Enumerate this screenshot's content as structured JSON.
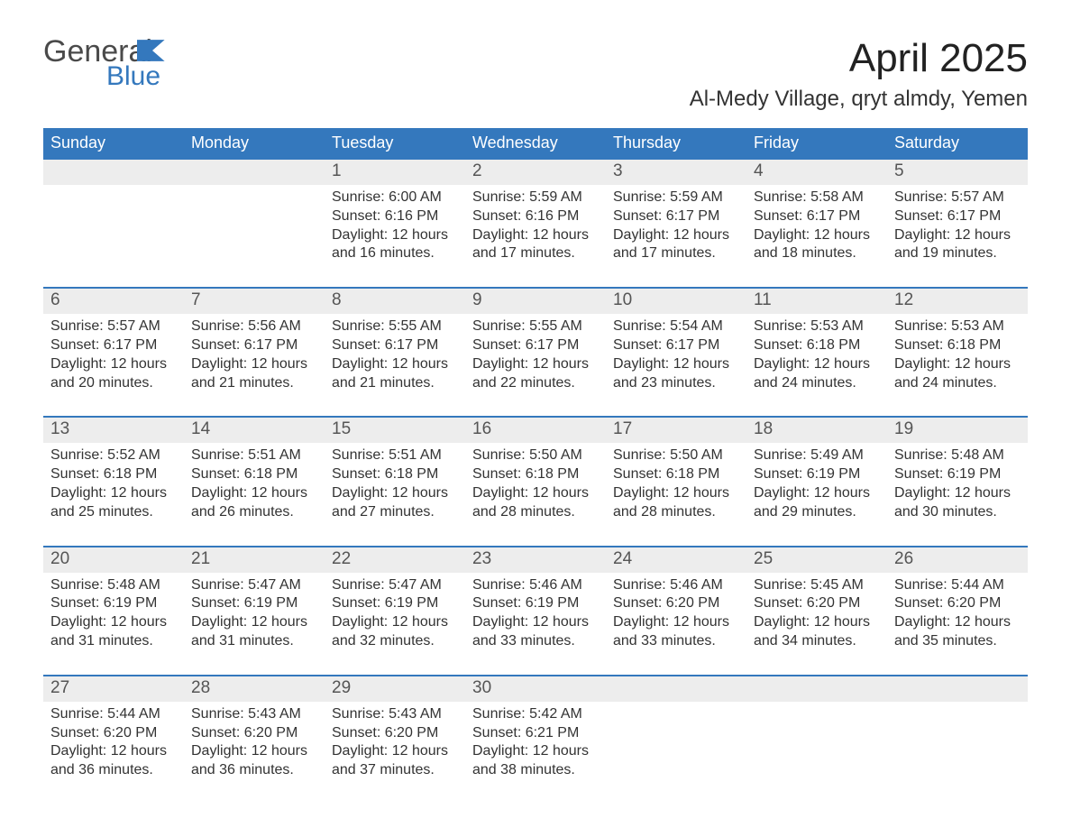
{
  "brand": {
    "word1": "General",
    "word2": "Blue",
    "flag_color": "#3478bd",
    "text_gray": "#4a4a4a"
  },
  "header": {
    "month_title": "April 2025",
    "location": "Al-Medy Village, qryt almdy, Yemen"
  },
  "styling": {
    "header_bg": "#3478bd",
    "header_text": "#ffffff",
    "daynum_bg": "#ededed",
    "week_divider": "#3478bd",
    "body_text": "#333333",
    "page_bg": "#ffffff",
    "title_fontsize": 44,
    "location_fontsize": 24,
    "weekday_fontsize": 18,
    "daynum_fontsize": 19,
    "detail_fontsize": 16
  },
  "weekdays": [
    "Sunday",
    "Monday",
    "Tuesday",
    "Wednesday",
    "Thursday",
    "Friday",
    "Saturday"
  ],
  "weeks": [
    {
      "days": [
        {
          "num": "",
          "sunrise": "",
          "sunset": "",
          "daylight1": "",
          "daylight2": ""
        },
        {
          "num": "",
          "sunrise": "",
          "sunset": "",
          "daylight1": "",
          "daylight2": ""
        },
        {
          "num": "1",
          "sunrise": "Sunrise: 6:00 AM",
          "sunset": "Sunset: 6:16 PM",
          "daylight1": "Daylight: 12 hours",
          "daylight2": "and 16 minutes."
        },
        {
          "num": "2",
          "sunrise": "Sunrise: 5:59 AM",
          "sunset": "Sunset: 6:16 PM",
          "daylight1": "Daylight: 12 hours",
          "daylight2": "and 17 minutes."
        },
        {
          "num": "3",
          "sunrise": "Sunrise: 5:59 AM",
          "sunset": "Sunset: 6:17 PM",
          "daylight1": "Daylight: 12 hours",
          "daylight2": "and 17 minutes."
        },
        {
          "num": "4",
          "sunrise": "Sunrise: 5:58 AM",
          "sunset": "Sunset: 6:17 PM",
          "daylight1": "Daylight: 12 hours",
          "daylight2": "and 18 minutes."
        },
        {
          "num": "5",
          "sunrise": "Sunrise: 5:57 AM",
          "sunset": "Sunset: 6:17 PM",
          "daylight1": "Daylight: 12 hours",
          "daylight2": "and 19 minutes."
        }
      ]
    },
    {
      "days": [
        {
          "num": "6",
          "sunrise": "Sunrise: 5:57 AM",
          "sunset": "Sunset: 6:17 PM",
          "daylight1": "Daylight: 12 hours",
          "daylight2": "and 20 minutes."
        },
        {
          "num": "7",
          "sunrise": "Sunrise: 5:56 AM",
          "sunset": "Sunset: 6:17 PM",
          "daylight1": "Daylight: 12 hours",
          "daylight2": "and 21 minutes."
        },
        {
          "num": "8",
          "sunrise": "Sunrise: 5:55 AM",
          "sunset": "Sunset: 6:17 PM",
          "daylight1": "Daylight: 12 hours",
          "daylight2": "and 21 minutes."
        },
        {
          "num": "9",
          "sunrise": "Sunrise: 5:55 AM",
          "sunset": "Sunset: 6:17 PM",
          "daylight1": "Daylight: 12 hours",
          "daylight2": "and 22 minutes."
        },
        {
          "num": "10",
          "sunrise": "Sunrise: 5:54 AM",
          "sunset": "Sunset: 6:17 PM",
          "daylight1": "Daylight: 12 hours",
          "daylight2": "and 23 minutes."
        },
        {
          "num": "11",
          "sunrise": "Sunrise: 5:53 AM",
          "sunset": "Sunset: 6:18 PM",
          "daylight1": "Daylight: 12 hours",
          "daylight2": "and 24 minutes."
        },
        {
          "num": "12",
          "sunrise": "Sunrise: 5:53 AM",
          "sunset": "Sunset: 6:18 PM",
          "daylight1": "Daylight: 12 hours",
          "daylight2": "and 24 minutes."
        }
      ]
    },
    {
      "days": [
        {
          "num": "13",
          "sunrise": "Sunrise: 5:52 AM",
          "sunset": "Sunset: 6:18 PM",
          "daylight1": "Daylight: 12 hours",
          "daylight2": "and 25 minutes."
        },
        {
          "num": "14",
          "sunrise": "Sunrise: 5:51 AM",
          "sunset": "Sunset: 6:18 PM",
          "daylight1": "Daylight: 12 hours",
          "daylight2": "and 26 minutes."
        },
        {
          "num": "15",
          "sunrise": "Sunrise: 5:51 AM",
          "sunset": "Sunset: 6:18 PM",
          "daylight1": "Daylight: 12 hours",
          "daylight2": "and 27 minutes."
        },
        {
          "num": "16",
          "sunrise": "Sunrise: 5:50 AM",
          "sunset": "Sunset: 6:18 PM",
          "daylight1": "Daylight: 12 hours",
          "daylight2": "and 28 minutes."
        },
        {
          "num": "17",
          "sunrise": "Sunrise: 5:50 AM",
          "sunset": "Sunset: 6:18 PM",
          "daylight1": "Daylight: 12 hours",
          "daylight2": "and 28 minutes."
        },
        {
          "num": "18",
          "sunrise": "Sunrise: 5:49 AM",
          "sunset": "Sunset: 6:19 PM",
          "daylight1": "Daylight: 12 hours",
          "daylight2": "and 29 minutes."
        },
        {
          "num": "19",
          "sunrise": "Sunrise: 5:48 AM",
          "sunset": "Sunset: 6:19 PM",
          "daylight1": "Daylight: 12 hours",
          "daylight2": "and 30 minutes."
        }
      ]
    },
    {
      "days": [
        {
          "num": "20",
          "sunrise": "Sunrise: 5:48 AM",
          "sunset": "Sunset: 6:19 PM",
          "daylight1": "Daylight: 12 hours",
          "daylight2": "and 31 minutes."
        },
        {
          "num": "21",
          "sunrise": "Sunrise: 5:47 AM",
          "sunset": "Sunset: 6:19 PM",
          "daylight1": "Daylight: 12 hours",
          "daylight2": "and 31 minutes."
        },
        {
          "num": "22",
          "sunrise": "Sunrise: 5:47 AM",
          "sunset": "Sunset: 6:19 PM",
          "daylight1": "Daylight: 12 hours",
          "daylight2": "and 32 minutes."
        },
        {
          "num": "23",
          "sunrise": "Sunrise: 5:46 AM",
          "sunset": "Sunset: 6:19 PM",
          "daylight1": "Daylight: 12 hours",
          "daylight2": "and 33 minutes."
        },
        {
          "num": "24",
          "sunrise": "Sunrise: 5:46 AM",
          "sunset": "Sunset: 6:20 PM",
          "daylight1": "Daylight: 12 hours",
          "daylight2": "and 33 minutes."
        },
        {
          "num": "25",
          "sunrise": "Sunrise: 5:45 AM",
          "sunset": "Sunset: 6:20 PM",
          "daylight1": "Daylight: 12 hours",
          "daylight2": "and 34 minutes."
        },
        {
          "num": "26",
          "sunrise": "Sunrise: 5:44 AM",
          "sunset": "Sunset: 6:20 PM",
          "daylight1": "Daylight: 12 hours",
          "daylight2": "and 35 minutes."
        }
      ]
    },
    {
      "days": [
        {
          "num": "27",
          "sunrise": "Sunrise: 5:44 AM",
          "sunset": "Sunset: 6:20 PM",
          "daylight1": "Daylight: 12 hours",
          "daylight2": "and 36 minutes."
        },
        {
          "num": "28",
          "sunrise": "Sunrise: 5:43 AM",
          "sunset": "Sunset: 6:20 PM",
          "daylight1": "Daylight: 12 hours",
          "daylight2": "and 36 minutes."
        },
        {
          "num": "29",
          "sunrise": "Sunrise: 5:43 AM",
          "sunset": "Sunset: 6:20 PM",
          "daylight1": "Daylight: 12 hours",
          "daylight2": "and 37 minutes."
        },
        {
          "num": "30",
          "sunrise": "Sunrise: 5:42 AM",
          "sunset": "Sunset: 6:21 PM",
          "daylight1": "Daylight: 12 hours",
          "daylight2": "and 38 minutes."
        },
        {
          "num": "",
          "sunrise": "",
          "sunset": "",
          "daylight1": "",
          "daylight2": ""
        },
        {
          "num": "",
          "sunrise": "",
          "sunset": "",
          "daylight1": "",
          "daylight2": ""
        },
        {
          "num": "",
          "sunrise": "",
          "sunset": "",
          "daylight1": "",
          "daylight2": ""
        }
      ]
    }
  ]
}
